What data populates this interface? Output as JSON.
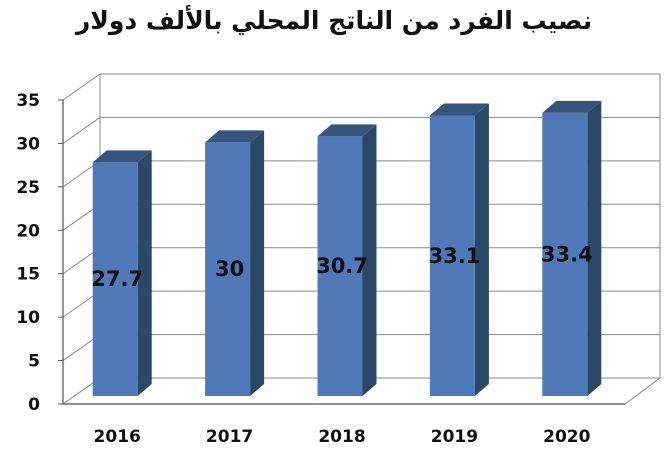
{
  "chart_data": {
    "type": "bar",
    "title": "نصيب الفرد من الناتج المحلي بالألف دولار",
    "categories": [
      "2016",
      "2017",
      "2018",
      "2019",
      "2020"
    ],
    "values": [
      27.7,
      30,
      30.7,
      33.1,
      33.4
    ],
    "data_labels": [
      "27.7",
      "30",
      "30.7",
      "33.1",
      "33.4"
    ],
    "y_ticks": [
      "0",
      "5",
      "10",
      "15",
      "20",
      "25",
      "30",
      "35"
    ],
    "ylim": [
      0,
      35
    ],
    "grid": true,
    "style": "3d-column",
    "colors": {
      "bar_front": "#4f79b9",
      "bar_side": "#2c4868",
      "bar_top": "#36557d",
      "grid": "#8a8a8a"
    }
  }
}
